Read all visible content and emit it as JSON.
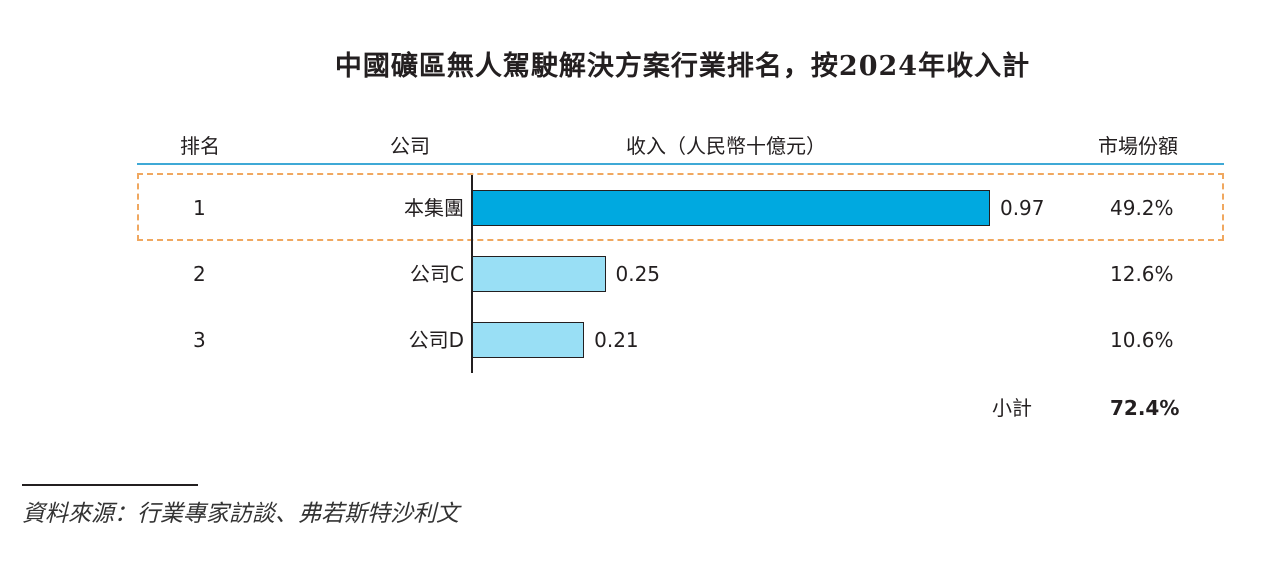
{
  "chart_data": {
    "type": "bar",
    "orientation": "horizontal",
    "title": "中國礦區無人駕駛解決方案行業排名，按2024年收入計",
    "columns": {
      "rank": "排名",
      "company": "公司",
      "revenue": "收入（人民幣十億元）",
      "share": "市場份額"
    },
    "rows": [
      {
        "rank": "1",
        "company": "本集團",
        "revenue": 0.97,
        "revenue_label": "0.97",
        "share": "49.2%",
        "highlighted": true,
        "color": "#00a9e0"
      },
      {
        "rank": "2",
        "company": "公司C",
        "revenue": 0.25,
        "revenue_label": "0.25",
        "share": "12.6%",
        "highlighted": false,
        "color": "#99dff5"
      },
      {
        "rank": "3",
        "company": "公司D",
        "revenue": 0.21,
        "revenue_label": "0.21",
        "share": "10.6%",
        "highlighted": false,
        "color": "#99dff5"
      }
    ],
    "subtotal": {
      "label": "小計",
      "value": "72.4%"
    },
    "highlight_color": "#f0a860",
    "header_rule_color": "#3fa9d6"
  },
  "source": "資料來源：行業專家訪談、弗若斯特沙利文"
}
